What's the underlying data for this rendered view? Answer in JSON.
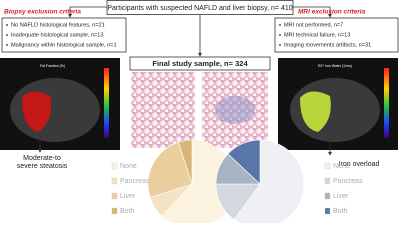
{
  "header": {
    "title": "Participants with suspected NAFLD and liver biopsy, n= 410"
  },
  "biopsy_exclusion": {
    "title": "Biopsy exclusion criteria",
    "items": [
      "No NAFLD histological features, n=21",
      "Inadequate histological sample, n=13",
      "Malignancy within histological sample, n=1"
    ]
  },
  "mri_exclusion": {
    "title": "MRI exclusion criteria",
    "items": [
      "MRI not performed, n=7",
      "MRI technical failure, n=13",
      "Imaging movements artifacts, n=31"
    ]
  },
  "final_sample": "Final study sample, n= 324",
  "images": {
    "left_label": "Fat Fraction (%)",
    "right_label": "R2* Iron Water (1/ms)"
  },
  "outcomes": {
    "left": "Moderate-to severe steatosis",
    "right": "Iron overload"
  },
  "pies": [
    {
      "categories": [
        "None",
        "Pancreas",
        "Liver",
        "Both"
      ],
      "values": [
        62,
        8,
        25,
        5
      ],
      "colors": [
        "#fbf2df",
        "#f3e3c3",
        "#e9cf9e",
        "#d8b67a"
      ]
    },
    {
      "categories": [
        "None",
        "Pancreas",
        "Liver",
        "Both"
      ],
      "values": [
        60,
        15,
        12,
        13
      ],
      "colors": [
        "#eef0f3",
        "#d3d8df",
        "#a9b4c2",
        "#5876a8"
      ]
    }
  ]
}
